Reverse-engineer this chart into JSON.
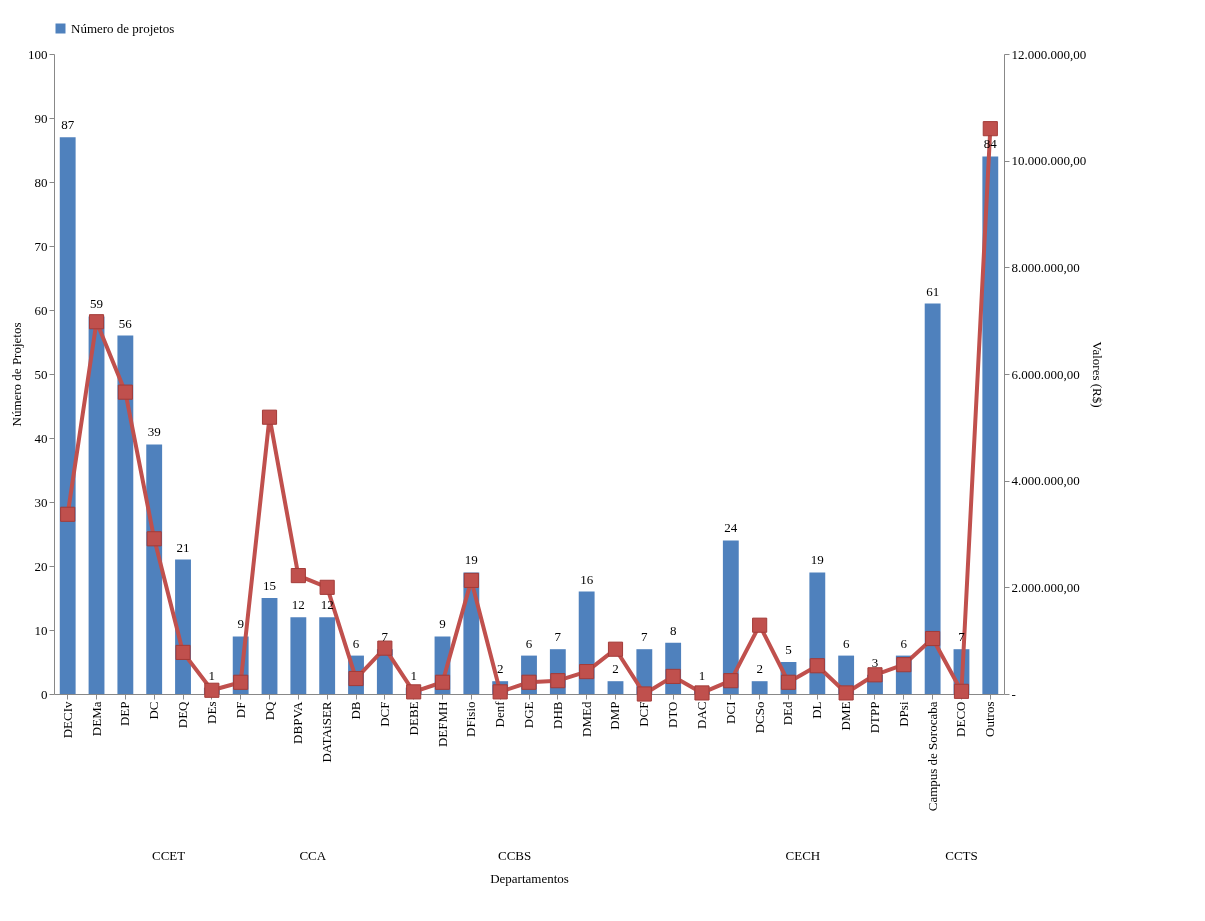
{
  "chart_data": {
    "type": "bar",
    "xlabel": "Departamentos",
    "ylabel": "Número de Projetos",
    "y2label": "Valores (R$)",
    "categories": [
      "DECIv",
      "DEMa",
      "DEP",
      "DC",
      "DEQ",
      "DEs",
      "DF",
      "DQ",
      "DBPVA",
      "DATAiSER",
      "DB",
      "DCF",
      "DEBE",
      "DEFMH",
      "DFisio",
      "Denf",
      "DGE",
      "DHB",
      "DMEd",
      "DMP",
      "DCF",
      "DTO",
      "DAC",
      "DCI",
      "DCSo",
      "DEd",
      "DL",
      "DME",
      "DTPP",
      "DPsi",
      "Campus de Sorocaba",
      "DECO",
      "Outros"
    ],
    "series": [
      {
        "name": "Número de projetos",
        "color": "#4f81bd",
        "values": [
          87,
          59,
          56,
          39,
          21,
          1,
          9,
          15,
          12,
          12,
          6,
          7,
          1,
          9,
          19,
          2,
          6,
          7,
          16,
          2,
          7,
          8,
          1,
          24,
          2,
          5,
          19,
          6,
          3,
          6,
          61,
          7,
          84
        ],
        "value_labels": [
          "87",
          "59",
          "56",
          "39",
          "21",
          "1",
          "9",
          "15",
          "12",
          "12",
          "6",
          "7",
          "1",
          "9",
          "19",
          "2",
          "6",
          "7",
          "16",
          "2",
          "7",
          "8",
          "1",
          "24",
          "2",
          "5",
          "19",
          "6",
          "3",
          "6",
          "61",
          "7",
          "84"
        ]
      },
      {
        "type": "line",
        "axis": "y2",
        "color": "#c0504d",
        "values": [
          3370000,
          6980000,
          5660000,
          2910000,
          780000,
          70000,
          220000,
          5190000,
          2220000,
          2000000,
          290000,
          860000,
          40000,
          220000,
          2130000,
          40000,
          220000,
          250000,
          420000,
          840000,
          0,
          330000,
          20000,
          250000,
          1290000,
          220000,
          530000,
          20000,
          360000,
          550000,
          1040000,
          50000,
          10600000
        ]
      }
    ],
    "ylim": [
      0,
      100
    ],
    "yticks": [
      0,
      10,
      20,
      30,
      40,
      50,
      60,
      70,
      80,
      90,
      100
    ],
    "y2lim": [
      0,
      12000000
    ],
    "y2ticks": [
      {
        "value": 0,
        "label": "-"
      },
      {
        "value": 2000000,
        "label": "2.000.000,00"
      },
      {
        "value": 4000000,
        "label": "4.000.000,00"
      },
      {
        "value": 6000000,
        "label": "6.000.000,00"
      },
      {
        "value": 8000000,
        "label": "8.000.000,00"
      },
      {
        "value": 10000000,
        "label": "10.000.000,00"
      },
      {
        "value": 12000000,
        "label": "12.000.000,00"
      }
    ],
    "annotations": [
      "CCET",
      "CCA",
      "CCBS",
      "CECH",
      "CCTS"
    ],
    "marker": "square",
    "line_style": "solid",
    "grid": false,
    "legend": "top"
  }
}
